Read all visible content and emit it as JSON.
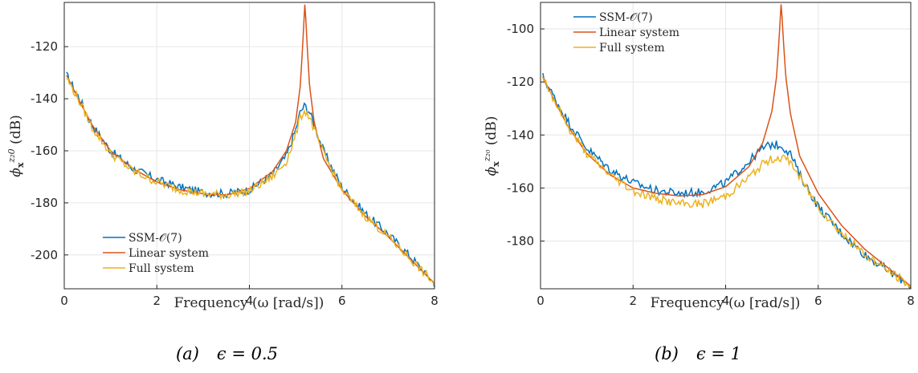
{
  "colors": {
    "ssm": "#0072BD",
    "linear": "#D95319",
    "full": "#EDB120",
    "grid": "#e6e6e6",
    "axis": "#262626"
  },
  "chart_data": [
    {
      "type": "line",
      "panel": "a",
      "caption_label": "(a)",
      "caption_param": "ϵ = 0.5",
      "xlabel": "Frequency (ω [rad/s])",
      "ylabel": "ϕ_x^{z_2 0} (dB)",
      "ylabel_main": "ϕ",
      "ylabel_sub": "x",
      "ylabel_sup": "z₂0",
      "ylabel_unit": "(dB)",
      "xlim": [
        0,
        8
      ],
      "ylim": [
        -213,
        -103
      ],
      "xticks": [
        0,
        2,
        4,
        6,
        8
      ],
      "xtick_labels": [
        "0",
        "2",
        "4",
        "6",
        "8"
      ],
      "yticks": [
        -120,
        -140,
        -160,
        -180,
        -200
      ],
      "ytick_labels": [
        "-120",
        "-140",
        "-160",
        "-180",
        "-200"
      ],
      "grid": true,
      "legend_position": "bottom-left",
      "series": [
        {
          "name": "SSM-𝒪(7)",
          "color_key": "ssm",
          "x": [
            0.05,
            0.3,
            0.6,
            1.0,
            1.5,
            2.0,
            2.5,
            3.0,
            3.5,
            4.0,
            4.5,
            4.8,
            5.0,
            5.1,
            5.2,
            5.3,
            5.4,
            5.6,
            6.0,
            6.5,
            7.0,
            7.5,
            8.0
          ],
          "y": [
            -131,
            -139,
            -150,
            -160,
            -167,
            -171,
            -174,
            -176,
            -176.5,
            -175,
            -169,
            -162,
            -152,
            -145,
            -142.5,
            -145,
            -150,
            -160,
            -174,
            -184,
            -192,
            -201,
            -211
          ]
        },
        {
          "name": "Linear system",
          "color_key": "linear",
          "x": [
            0.05,
            0.3,
            0.6,
            1.0,
            1.5,
            2.0,
            2.5,
            3.0,
            3.5,
            4.0,
            4.5,
            4.8,
            5.0,
            5.1,
            5.15,
            5.2,
            5.25,
            5.3,
            5.4,
            5.6,
            6.0,
            6.5,
            7.0,
            7.5,
            8.0
          ],
          "y": [
            -131,
            -140,
            -150,
            -160,
            -167,
            -172,
            -175,
            -176.5,
            -177,
            -174.5,
            -168,
            -160,
            -149,
            -135,
            -120,
            -103,
            -120,
            -135,
            -149,
            -163,
            -175,
            -185,
            -193,
            -202,
            -211
          ]
        },
        {
          "name": "Full system",
          "color_key": "full",
          "x": [
            0.05,
            0.3,
            0.6,
            1.0,
            1.5,
            2.0,
            2.5,
            3.0,
            3.5,
            4.0,
            4.5,
            4.8,
            5.0,
            5.1,
            5.2,
            5.3,
            5.4,
            5.6,
            6.0,
            6.5,
            7.0,
            7.5,
            8.0
          ],
          "y": [
            -132,
            -140,
            -151,
            -161,
            -168,
            -172,
            -175,
            -176.5,
            -177,
            -175.5,
            -170,
            -164,
            -154,
            -147,
            -144.5,
            -147,
            -152,
            -161,
            -175,
            -185,
            -193,
            -202,
            -211
          ]
        }
      ]
    },
    {
      "type": "line",
      "panel": "b",
      "caption_label": "(b)",
      "caption_param": "ϵ = 1",
      "xlabel": "Frequency (ω [rad/s])",
      "ylabel": "ϕ_x^{z_20} (dB)",
      "ylabel_main": "ϕ",
      "ylabel_sub": "x",
      "ylabel_sup": "z₂₀",
      "ylabel_unit": "(dB)",
      "xlim": [
        0,
        8
      ],
      "ylim": [
        -198,
        -90
      ],
      "xticks": [
        0,
        2,
        4,
        6,
        8
      ],
      "xtick_labels": [
        "0",
        "2",
        "4",
        "6",
        "8"
      ],
      "yticks": [
        -100,
        -120,
        -140,
        -160,
        -180
      ],
      "ytick_labels": [
        "-100",
        "-120",
        "-140",
        "-160",
        "-180"
      ],
      "grid": true,
      "legend_position": "top-left",
      "series": [
        {
          "name": "SSM-𝒪(7)",
          "color_key": "ssm",
          "x": [
            0.05,
            0.3,
            0.6,
            1.0,
            1.5,
            2.0,
            2.5,
            3.0,
            3.5,
            4.0,
            4.5,
            4.8,
            5.0,
            5.2,
            5.4,
            5.6,
            6.0,
            6.5,
            7.0,
            7.5,
            8.0
          ],
          "y": [
            -118,
            -126,
            -135,
            -145,
            -153,
            -158,
            -161,
            -162,
            -161.5,
            -158,
            -150,
            -145,
            -143.5,
            -144,
            -147,
            -155,
            -167,
            -177,
            -185,
            -191,
            -197
          ]
        },
        {
          "name": "Linear system",
          "color_key": "linear",
          "x": [
            0.05,
            0.3,
            0.6,
            1.0,
            1.5,
            2.0,
            2.5,
            3.0,
            3.5,
            4.0,
            4.5,
            4.8,
            5.0,
            5.1,
            5.15,
            5.2,
            5.25,
            5.3,
            5.4,
            5.6,
            6.0,
            6.5,
            7.0,
            7.5,
            8.0
          ],
          "y": [
            -118,
            -127,
            -137,
            -147,
            -155,
            -160,
            -162,
            -163,
            -162.5,
            -159.5,
            -152,
            -143,
            -131,
            -118,
            -105,
            -90,
            -105,
            -118,
            -132,
            -148,
            -162,
            -174,
            -183,
            -190,
            -197
          ]
        },
        {
          "name": "Full system",
          "color_key": "full",
          "x": [
            0.05,
            0.3,
            0.6,
            1.0,
            1.5,
            2.0,
            2.5,
            3.0,
            3.5,
            4.0,
            4.5,
            4.8,
            5.0,
            5.2,
            5.4,
            5.6,
            6.0,
            6.5,
            7.0,
            7.5,
            8.0
          ],
          "y": [
            -118,
            -127,
            -137,
            -147,
            -155,
            -161,
            -164,
            -166,
            -166,
            -163,
            -156,
            -151,
            -149,
            -148.5,
            -150,
            -156,
            -167,
            -177,
            -185,
            -191,
            -197
          ]
        }
      ]
    }
  ]
}
